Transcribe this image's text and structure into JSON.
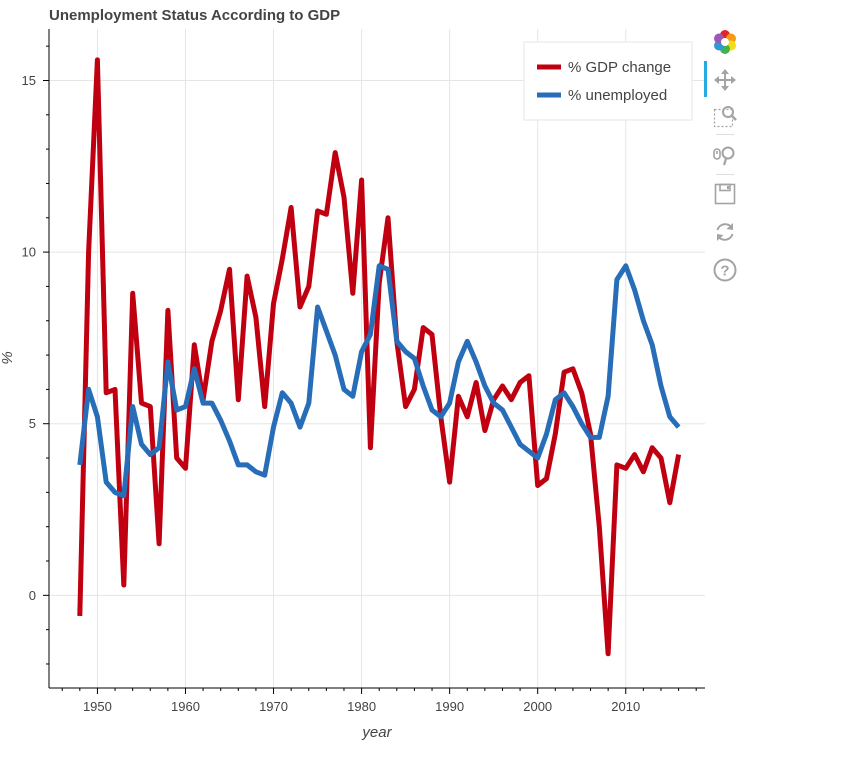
{
  "chart_data": {
    "type": "line",
    "title": "Unemployment Status According to GDP",
    "xlabel": "year",
    "ylabel": "%",
    "xlim": [
      1944.5,
      2019
    ],
    "ylim": [
      -2.7,
      16.5
    ],
    "x_ticks": [
      1950,
      1960,
      1970,
      1980,
      1990,
      2000,
      2010
    ],
    "y_ticks": [
      0,
      5,
      10,
      15
    ],
    "grid": true,
    "legend_position": "top-right",
    "series": [
      {
        "name": "% GDP change",
        "color": "#c00010",
        "x": [
          1948,
          1949,
          1950,
          1951,
          1952,
          1953,
          1954,
          1955,
          1956,
          1957,
          1958,
          1959,
          1960,
          1961,
          1962,
          1963,
          1964,
          1965,
          1966,
          1967,
          1968,
          1969,
          1970,
          1971,
          1972,
          1973,
          1974,
          1975,
          1976,
          1977,
          1978,
          1979,
          1980,
          1981,
          1982,
          1983,
          1984,
          1985,
          1986,
          1987,
          1988,
          1989,
          1990,
          1991,
          1992,
          1993,
          1994,
          1995,
          1996,
          1997,
          1998,
          1999,
          2000,
          2001,
          2002,
          2003,
          2004,
          2005,
          2006,
          2007,
          2008,
          2009,
          2010,
          2011,
          2012,
          2013,
          2014,
          2015,
          2016
        ],
        "values": [
          -0.6,
          10.0,
          15.6,
          5.9,
          6.0,
          0.3,
          8.8,
          5.6,
          5.5,
          1.5,
          8.3,
          4.0,
          3.7,
          7.3,
          5.7,
          7.4,
          8.3,
          9.5,
          5.7,
          9.3,
          8.1,
          5.5,
          8.5,
          9.8,
          11.3,
          8.4,
          9.0,
          11.2,
          11.1,
          12.9,
          11.6,
          8.8,
          12.1,
          4.3,
          9.1,
          11.0,
          7.4,
          5.5,
          6.0,
          7.8,
          7.6,
          5.2,
          3.3,
          5.8,
          5.2,
          6.2,
          4.8,
          5.7,
          6.1,
          5.7,
          6.2,
          6.4,
          3.2,
          3.4,
          4.7,
          6.5,
          6.6,
          5.9,
          4.7,
          2.0,
          -1.7,
          3.8,
          3.7,
          4.1,
          3.6,
          4.3,
          4.0,
          2.7,
          4.1
        ]
      },
      {
        "name": "% unemployed",
        "color": "#276db8",
        "x": [
          1948,
          1949,
          1950,
          1951,
          1952,
          1953,
          1954,
          1955,
          1956,
          1957,
          1958,
          1959,
          1960,
          1961,
          1962,
          1963,
          1964,
          1965,
          1966,
          1967,
          1968,
          1969,
          1970,
          1971,
          1972,
          1973,
          1974,
          1975,
          1976,
          1977,
          1978,
          1979,
          1980,
          1981,
          1982,
          1983,
          1984,
          1985,
          1986,
          1987,
          1988,
          1989,
          1990,
          1991,
          1992,
          1993,
          1994,
          1995,
          1996,
          1997,
          1998,
          1999,
          2000,
          2001,
          2002,
          2003,
          2004,
          2005,
          2006,
          2007,
          2008,
          2009,
          2010,
          2011,
          2012,
          2013,
          2014,
          2015,
          2016
        ],
        "values": [
          3.8,
          6.0,
          5.2,
          3.3,
          3.0,
          2.9,
          5.5,
          4.4,
          4.1,
          4.3,
          6.8,
          5.4,
          5.5,
          6.6,
          5.6,
          5.6,
          5.1,
          4.5,
          3.8,
          3.8,
          3.6,
          3.5,
          4.9,
          5.9,
          5.6,
          4.9,
          5.6,
          8.4,
          7.7,
          7.0,
          6.0,
          5.8,
          7.1,
          7.6,
          9.6,
          9.5,
          7.4,
          7.1,
          6.9,
          6.1,
          5.4,
          5.2,
          5.6,
          6.8,
          7.4,
          6.8,
          6.1,
          5.6,
          5.4,
          4.9,
          4.4,
          4.2,
          4.0,
          4.7,
          5.7,
          5.9,
          5.5,
          5.0,
          4.6,
          4.6,
          5.8,
          9.2,
          9.6,
          8.9,
          8.0,
          7.3,
          6.1,
          5.2,
          4.9
        ]
      }
    ]
  },
  "toolbar": {
    "tools": [
      "bokeh-logo-icon",
      "pan-icon",
      "box-zoom-icon",
      "wheel-zoom-icon",
      "save-icon",
      "reset-icon",
      "help-icon"
    ]
  }
}
